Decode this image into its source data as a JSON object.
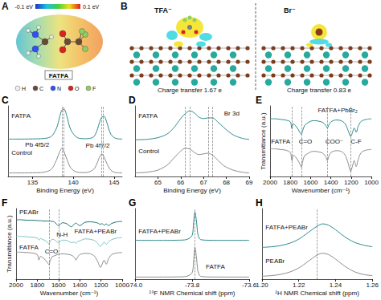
{
  "diagrams": [
    {
      "panel": "A",
      "colorbar_labels": [
        "-0.1 eV",
        "0.1 eV"
      ],
      "molecule": "FATFA",
      "atoms": [
        "H",
        "C",
        "N",
        "O",
        "F"
      ]
    },
    {
      "panel": "B",
      "structures": [
        {
          "ion": "TFA⁻",
          "caption": "Charge transfer 1.67 e"
        },
        {
          "ion": "Br⁻",
          "caption": "Charge transfer 0.83 e"
        }
      ]
    }
  ],
  "chart_data": [
    {
      "panel": "C",
      "type": "line",
      "x_label": "Binding Energy (eV)",
      "x": [
        132,
        133,
        134,
        135,
        136,
        137,
        137.5,
        138,
        138.3,
        138.6,
        138.9,
        139.2,
        139.7,
        140.5,
        141.5,
        142.5,
        143,
        143.2,
        143.5,
        143.8,
        144.1,
        144.6,
        145.2,
        146
      ],
      "xlim": [
        132,
        146
      ],
      "xticks": [
        135,
        140,
        145
      ],
      "ylim": [
        0,
        10
      ],
      "series": [
        {
          "name": "FATFA",
          "color": "#2a8a8c",
          "values": [
            5.3,
            5.3,
            5.3,
            5.32,
            5.35,
            5.5,
            5.9,
            7.0,
            8.3,
            9.4,
            9.5,
            8.6,
            6.6,
            5.5,
            5.35,
            5.6,
            6.8,
            7.6,
            8.4,
            8.5,
            7.7,
            6.0,
            5.4,
            5.3
          ]
        },
        {
          "name": "Control",
          "color": "#8c8c8c",
          "values": [
            0.5,
            0.5,
            0.5,
            0.52,
            0.55,
            0.8,
            1.3,
            2.5,
            3.4,
            4.0,
            3.4,
            2.5,
            1.2,
            0.6,
            0.55,
            1.0,
            2.1,
            2.7,
            3.2,
            2.7,
            1.9,
            0.9,
            0.55,
            0.5
          ]
        }
      ],
      "annotations": [
        "Pb 4f5/2",
        "Pb 4f7/2"
      ],
      "vlines": [
        138.6,
        138.8,
        143.5,
        143.7
      ],
      "grid": false,
      "tick_labels": "x"
    },
    {
      "panel": "D",
      "type": "line",
      "x_label": "Binding Energy (eV)",
      "x": [
        64,
        64.5,
        65,
        65.4,
        65.7,
        66,
        66.2,
        66.4,
        66.6,
        66.8,
        67,
        67.2,
        67.4,
        67.6,
        67.9,
        68.3,
        68.7,
        69
      ],
      "xlim": [
        64,
        69
      ],
      "xticks": [
        65,
        66,
        67,
        68,
        69
      ],
      "ylim": [
        0,
        10
      ],
      "series": [
        {
          "name": "FATFA",
          "color": "#2a8a8c",
          "values": [
            5.2,
            5.25,
            5.5,
            6.0,
            6.9,
            8.2,
            8.9,
            9.3,
            9.0,
            8.4,
            8.2,
            8.3,
            8.3,
            7.8,
            6.9,
            5.9,
            5.4,
            5.25
          ]
        },
        {
          "name": "Control",
          "color": "#8c8c8c",
          "values": [
            0.5,
            0.6,
            0.9,
            1.6,
            2.6,
            3.6,
            4.0,
            3.9,
            3.4,
            3.1,
            3.2,
            3.3,
            3.0,
            2.4,
            1.5,
            0.9,
            0.6,
            0.5
          ]
        }
      ],
      "annotations": [
        "Br 3d"
      ],
      "vlines": [
        66.2,
        66.4,
        67.2,
        67.4
      ],
      "grid": false,
      "tick_labels": "x"
    },
    {
      "panel": "E",
      "type": "line",
      "x_label": "Wavenumber (cm⁻¹)",
      "y_label": "Transmittance (a.u.)",
      "x": [
        2000,
        1950,
        1900,
        1850,
        1800,
        1785,
        1770,
        1750,
        1720,
        1700,
        1690,
        1680,
        1660,
        1640,
        1600,
        1560,
        1520,
        1480,
        1450,
        1435,
        1420,
        1400,
        1350,
        1300,
        1260,
        1230,
        1205,
        1190,
        1170,
        1150,
        1130,
        1100,
        1050,
        1000
      ],
      "xlim": [
        2000,
        1000
      ],
      "xticks": [
        2000,
        1800,
        1600,
        1400,
        1200,
        1000
      ],
      "ylim": [
        0,
        11.5
      ],
      "series": [
        {
          "name": "FATFA+PbBr₂",
          "color": "#2a8a8c",
          "values": [
            9.4,
            9.4,
            9.3,
            9.2,
            8.9,
            7.8,
            8.6,
            8.3,
            7.6,
            7.0,
            6.9,
            7.4,
            8.3,
            8.6,
            9.0,
            9.1,
            9.0,
            8.8,
            8.3,
            7.9,
            8.4,
            8.9,
            9.2,
            9.1,
            8.6,
            7.5,
            6.5,
            7.0,
            7.9,
            7.2,
            8.2,
            9.0,
            9.3,
            9.4
          ]
        },
        {
          "name": "FATFA",
          "color": "#8c8c8c",
          "values": [
            4.5,
            4.5,
            4.4,
            4.3,
            3.9,
            2.6,
            3.5,
            3.2,
            2.5,
            1.8,
            1.5,
            2.3,
            3.4,
            3.6,
            4.0,
            4.1,
            4.0,
            3.8,
            3.2,
            2.6,
            3.3,
            3.9,
            4.2,
            4.1,
            3.5,
            2.2,
            0.8,
            1.5,
            2.6,
            1.6,
            2.8,
            3.9,
            4.3,
            4.4
          ]
        }
      ],
      "annotations": [
        "C=O",
        "COO⁻",
        "C-F"
      ],
      "vlines": [
        1785,
        1690,
        1435,
        1205
      ],
      "grid": false,
      "tick_labels": "x"
    },
    {
      "panel": "F",
      "type": "line",
      "x_label": "Wavenumber (cm⁻¹)",
      "y_label": "Transmittance (a.u.)",
      "x": [
        2000,
        1950,
        1900,
        1850,
        1800,
        1785,
        1770,
        1750,
        1720,
        1700,
        1690,
        1680,
        1660,
        1640,
        1600,
        1560,
        1520,
        1480,
        1450,
        1435,
        1420,
        1400,
        1350,
        1300,
        1260,
        1230,
        1205,
        1190,
        1170,
        1150,
        1130,
        1100,
        1050,
        1000
      ],
      "xlim": [
        2000,
        1000
      ],
      "xticks": [
        2000,
        1800,
        1600,
        1400,
        1200,
        1000
      ],
      "ylim": [
        0,
        17
      ],
      "series": [
        {
          "name": "PEABr",
          "color": "#1d6f73",
          "values": [
            14.3,
            14.3,
            14.2,
            14.2,
            14.1,
            14.1,
            14.1,
            14.0,
            14.0,
            14.0,
            14.0,
            14.0,
            13.9,
            13.8,
            12.9,
            13.6,
            13.3,
            12.6,
            13.3,
            13.5,
            13.2,
            12.9,
            13.7,
            13.8,
            13.7,
            13.5,
            13.2,
            13.4,
            13.0,
            13.3,
            12.9,
            13.4,
            13.8,
            13.9
          ]
        },
        {
          "name": "FATFA+PEABr",
          "color": "#7cc4c2",
          "values": [
            10.3,
            10.3,
            10.2,
            10.1,
            9.9,
            9.4,
            9.8,
            9.6,
            9.2,
            8.7,
            8.5,
            9.0,
            9.6,
            9.5,
            8.8,
            9.4,
            9.3,
            8.8,
            8.9,
            8.6,
            9.1,
            9.2,
            9.7,
            9.6,
            9.3,
            8.6,
            7.9,
            8.3,
            8.9,
            8.4,
            8.9,
            9.5,
            9.9,
            10.0
          ]
        },
        {
          "name": "FATFA",
          "color": "#8c8c8c",
          "values": [
            6.5,
            6.5,
            6.4,
            6.3,
            5.9,
            4.6,
            5.5,
            5.2,
            4.5,
            3.8,
            3.5,
            4.3,
            5.4,
            5.6,
            6.0,
            6.1,
            6.0,
            5.8,
            5.2,
            4.6,
            5.3,
            5.9,
            6.2,
            6.1,
            5.5,
            4.2,
            2.8,
            3.5,
            4.6,
            3.6,
            4.8,
            5.9,
            6.3,
            6.4
          ]
        }
      ],
      "annotations": [
        "C=O",
        "N-H"
      ],
      "vlines": [
        1690,
        1600
      ],
      "grid": false,
      "tick_labels": "x"
    },
    {
      "panel": "G",
      "type": "line",
      "x_label": "¹⁹F NMR Chemical shift (ppm)",
      "x": [
        -74.0,
        -73.9,
        -73.85,
        -73.82,
        -73.8,
        -73.795,
        -73.79,
        -73.785,
        -73.78,
        -73.775,
        -73.77,
        -73.75,
        -73.7,
        -73.6
      ],
      "xlim": [
        -74,
        -73.6
      ],
      "xticks": [
        {
          "value": -74,
          "label": "-74.0"
        },
        -73.8,
        -73.6
      ],
      "ylim": [
        0,
        10
      ],
      "series": [
        {
          "name": "FATFA+PEABr",
          "color": "#2a8a8c",
          "values": [
            5.5,
            5.5,
            5.52,
            5.6,
            6.2,
            8.0,
            9.5,
            8.3,
            6.4,
            5.8,
            5.6,
            5.52,
            5.5,
            5.5
          ]
        },
        {
          "name": "FATFA",
          "color": "#8c8c8c",
          "values": [
            0.3,
            0.3,
            0.32,
            0.4,
            0.9,
            2.5,
            4.5,
            3.2,
            1.2,
            0.6,
            0.4,
            0.32,
            0.3,
            0.3
          ]
        }
      ],
      "annotations": [],
      "vlines": [
        -73.79
      ],
      "grid": false,
      "tick_labels": "x"
    },
    {
      "panel": "H",
      "type": "line",
      "x_label": "¹H NMR Chemical shift (ppm)",
      "x": [
        1.2,
        1.205,
        1.21,
        1.215,
        1.22,
        1.225,
        1.23,
        1.233,
        1.236,
        1.24,
        1.245,
        1.25,
        1.255,
        1.26
      ],
      "xlim": [
        1.2,
        1.26
      ],
      "xticks": [
        {
          "value": 1.2,
          "label": "1.20"
        },
        1.22,
        1.24,
        1.26
      ],
      "ylim": [
        0,
        12
      ],
      "series": [
        {
          "name": "FATFA+PEABr",
          "color": "#2a8a8c",
          "values": [
            5.4,
            5.5,
            5.7,
            6.1,
            6.8,
            7.9,
            9.0,
            9.4,
            9.2,
            8.4,
            7.2,
            6.3,
            5.8,
            5.5
          ]
        },
        {
          "name": "PEABr",
          "color": "#8c8c8c",
          "values": [
            0.5,
            0.6,
            0.8,
            1.2,
            1.9,
            3.0,
            4.1,
            4.4,
            4.2,
            3.4,
            2.2,
            1.3,
            0.8,
            0.6
          ]
        }
      ],
      "annotations": [],
      "vlines": [
        1.234
      ],
      "grid": false,
      "tick_labels": "x"
    }
  ]
}
